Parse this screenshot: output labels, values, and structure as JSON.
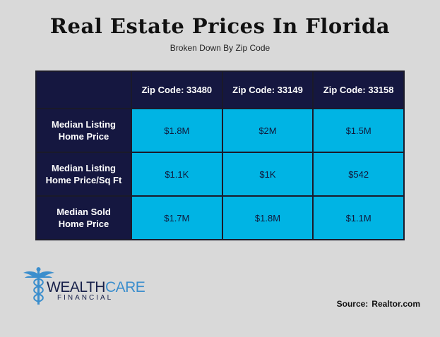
{
  "header": {
    "title": "Real Estate Prices In Florida",
    "subtitle": "Broken Down By Zip Code"
  },
  "table": {
    "columns": [
      "Zip Code: 33480",
      "Zip Code: 33149",
      "Zip Code: 33158"
    ],
    "rows": [
      {
        "label_line1": "Median Listing",
        "label_line2": "Home Price",
        "values": [
          "$1.8M",
          "$2M",
          "$1.5M"
        ]
      },
      {
        "label_line1": "Median Listing",
        "label_line2": "Home Price/Sq Ft",
        "values": [
          "$1.1K",
          "$1K",
          "$542"
        ]
      },
      {
        "label_line1": "Median Sold",
        "label_line2": "Home Price",
        "values": [
          "$1.7M",
          "$1.8M",
          "$1.1M"
        ]
      }
    ]
  },
  "logo": {
    "word_part1": "WEALTH",
    "word_part2": "CARE",
    "subword": "FINANCIAL",
    "icon": "caduceus-icon"
  },
  "source": {
    "label": "Source:",
    "value": "Realtor.com"
  },
  "colors": {
    "background": "#d9d9d9",
    "header_navy": "#151740",
    "cell_cyan": "#00b4e4",
    "logo_blue": "#3b8ecd"
  }
}
